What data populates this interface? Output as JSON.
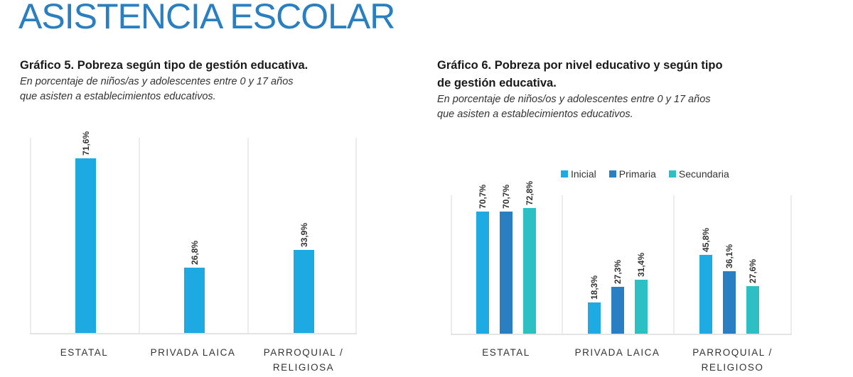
{
  "page": {
    "title": "ASISTENCIA ESCOLAR"
  },
  "colors": {
    "title": "#2a7fc0",
    "single_bar": "#1daae2",
    "inicial": "#1eaae3",
    "primaria": "#2a7fc3",
    "secundaria": "#2cc0c4"
  },
  "chart5": {
    "title": "Gráfico 5. Pobreza según tipo de gestión educativa.",
    "subtitle_line1": "En porcentaje de niños/as y adolescentes entre 0 y 17 años",
    "subtitle_line2": "que asisten a establecimientos educativos.",
    "categories": [
      {
        "line1": "ESTATAL",
        "line2": "",
        "value_label": "71,6%"
      },
      {
        "line1": "PRIVADA LAICA",
        "line2": "",
        "value_label": "26,8%"
      },
      {
        "line1": "PARROQUIAL /",
        "line2": "RELIGIOSA",
        "value_label": "33,9%"
      }
    ]
  },
  "chart6": {
    "title_line1": "Gráfico 6. Pobreza por nivel educativo y según tipo",
    "title_line2": "de gestión educativa.",
    "subtitle_line1": "En porcentaje de niños/os y adolescentes entre 0 y 17 años",
    "subtitle_line2": "que asisten a establecimientos educativos.",
    "legend": [
      {
        "label": "Inicial"
      },
      {
        "label": "Primaria"
      },
      {
        "label": "Secundaria"
      }
    ],
    "categories": [
      {
        "line1": "ESTATAL",
        "line2": "",
        "labels": [
          "70,7%",
          "70,7%",
          "72,8%"
        ]
      },
      {
        "line1": "PRIVADA LAICA",
        "line2": "",
        "labels": [
          "18,3%",
          "27,3%",
          "31,4%"
        ]
      },
      {
        "line1": "PARROQUIAL /",
        "line2": "RELIGIOSO",
        "labels": [
          "45,8%",
          "36,1%",
          "27,6%"
        ]
      }
    ]
  },
  "chart_data": [
    {
      "type": "bar",
      "title": "Gráfico 5. Pobreza según tipo de gestión educativa.",
      "subtitle": "En porcentaje de niños/as y adolescentes entre 0 y 17 años que asisten a establecimientos educativos.",
      "categories": [
        "ESTATAL",
        "PRIVADA LAICA",
        "PARROQUIAL / RELIGIOSA"
      ],
      "values": [
        71.6,
        26.8,
        33.9
      ],
      "value_labels": [
        "71,6%",
        "26,8%",
        "33,9%"
      ],
      "xlabel": "",
      "ylabel": "",
      "ylim": [
        0,
        80
      ],
      "grid": false,
      "legend": null
    },
    {
      "type": "bar",
      "title": "Gráfico 6. Pobreza por nivel educativo y según tipo de gestión educativa.",
      "subtitle": "En porcentaje de niños/os y adolescentes entre 0 y 17 años que asisten a establecimientos educativos.",
      "categories": [
        "ESTATAL",
        "PRIVADA LAICA",
        "PARROQUIAL / RELIGIOSO"
      ],
      "series": [
        {
          "name": "Inicial",
          "values": [
            70.7,
            18.3,
            45.8
          ]
        },
        {
          "name": "Primaria",
          "values": [
            70.7,
            27.3,
            36.1
          ]
        },
        {
          "name": "Secundaria",
          "values": [
            72.8,
            31.4,
            27.6
          ]
        }
      ],
      "xlabel": "",
      "ylabel": "",
      "ylim": [
        0,
        80
      ],
      "grid": false,
      "legend_position": "top"
    }
  ]
}
